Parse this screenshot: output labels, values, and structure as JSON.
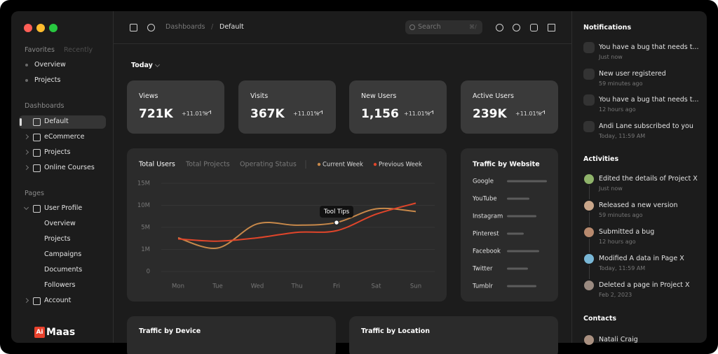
{
  "sidebar": {
    "tabs": [
      "Favorites",
      "Recently"
    ],
    "favorites": [
      "Overview",
      "Projects"
    ],
    "dashboards_title": "Dashboards",
    "dashboards": [
      "Default",
      "eCommerce",
      "Projects",
      "Online Courses"
    ],
    "pages_title": "Pages",
    "pages": [
      {
        "label": "User Profile",
        "children": [
          "Overview",
          "Projects",
          "Campaigns",
          "Documents",
          "Followers"
        ]
      },
      {
        "label": "Account"
      }
    ],
    "logo": {
      "mark": "Ai",
      "name": "Maas"
    }
  },
  "header": {
    "breadcrumb": [
      "Dashboards",
      "Default"
    ],
    "separator": "/",
    "search": {
      "placeholder": "Search",
      "shortcut": "⌘/"
    }
  },
  "filter": "Today",
  "stats": [
    {
      "label": "Views",
      "value": "721K",
      "change": "+11.01%"
    },
    {
      "label": "Visits",
      "value": "367K",
      "change": "+11.01%"
    },
    {
      "label": "New Users",
      "value": "1,156",
      "change": "+11.01%"
    },
    {
      "label": "Active Users",
      "value": "239K",
      "change": "+11.01%"
    }
  ],
  "chart_data": [
    {
      "type": "line",
      "tabs": [
        "Total Users",
        "Total Projects",
        "Operating Status"
      ],
      "annotation": "Tool Tips",
      "categories": [
        "Mon",
        "Tue",
        "Wed",
        "Thu",
        "Fri",
        "Sat",
        "Sun"
      ],
      "series": [
        {
          "name": "Current Week",
          "color": "#c8894a",
          "values": [
            3100000,
            1250000,
            5800000,
            5500000,
            6100000,
            9200000,
            8600000
          ]
        },
        {
          "name": "Previous Week",
          "color": "#e0452a",
          "values": [
            2900000,
            2500000,
            3100000,
            4100000,
            4400000,
            8000000,
            10500000
          ]
        }
      ],
      "ylim": [
        0,
        15000000
      ],
      "yticks": [
        0,
        {
          "value": 1000000,
          "label": "1M"
        },
        {
          "value": 5000000,
          "label": "5M"
        },
        {
          "value": 10000000,
          "label": "10M"
        },
        {
          "value": 15000000,
          "label": "15M"
        }
      ],
      "grid": true
    },
    {
      "type": "bar",
      "orientation": "horizontal",
      "title": "Traffic by Website",
      "categories": [
        "Google",
        "YouTube",
        "Instagram",
        "Pinterest",
        "Facebook",
        "Twitter",
        "Tumblr"
      ],
      "values": [
        57,
        32,
        42,
        24,
        46,
        30,
        42
      ],
      "xlim": [
        0,
        60
      ],
      "color": "#5c5c5c"
    }
  ],
  "cards": [
    "Traffic by Device",
    "Traffic by Location"
  ],
  "notifications": {
    "title": "Notifications",
    "items": [
      {
        "text": "You have a bug that needs t...",
        "time": "Just now"
      },
      {
        "text": "New user registered",
        "time": "59 minutes ago"
      },
      {
        "text": "You have a bug that needs t...",
        "time": "12 hours ago"
      },
      {
        "text": "Andi Lane subscribed to you",
        "time": "Today, 11:59 AM"
      }
    ]
  },
  "activities": {
    "title": "Activities",
    "items": [
      {
        "text": "Edited the details of Project X",
        "time": "Just now"
      },
      {
        "text": "Released a new version",
        "time": "59 minutes ago"
      },
      {
        "text": "Submitted a bug",
        "time": "12 hours ago"
      },
      {
        "text": "Modified A data in Page X",
        "time": "Today, 11:59 AM"
      },
      {
        "text": "Deleted a page in Project X",
        "time": "Feb 2, 2023"
      }
    ]
  },
  "contacts": {
    "title": "Contacts",
    "items": [
      "Natali Craig"
    ]
  }
}
